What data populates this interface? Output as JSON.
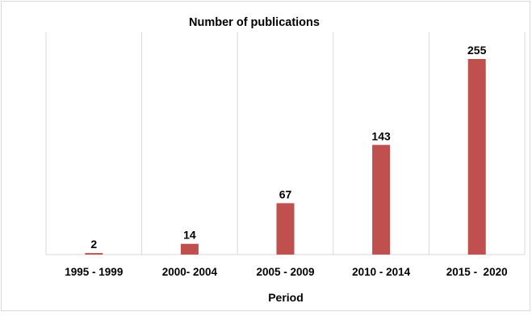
{
  "chart_data": {
    "type": "bar",
    "title": "Number of publications",
    "xlabel": "Period",
    "ylabel": "",
    "categories": [
      "1995 - 1999",
      "2000- 2004",
      "2005 - 2009",
      "2010 - 2014",
      "2015 -  2020"
    ],
    "values": [
      2,
      14,
      67,
      143,
      255
    ],
    "ylim": [
      0,
      255
    ],
    "grid": "vertical category separators",
    "bar_color": "#c0504d",
    "data_labels": [
      "2",
      "14",
      "67",
      "143",
      "255"
    ],
    "legend": "none"
  }
}
